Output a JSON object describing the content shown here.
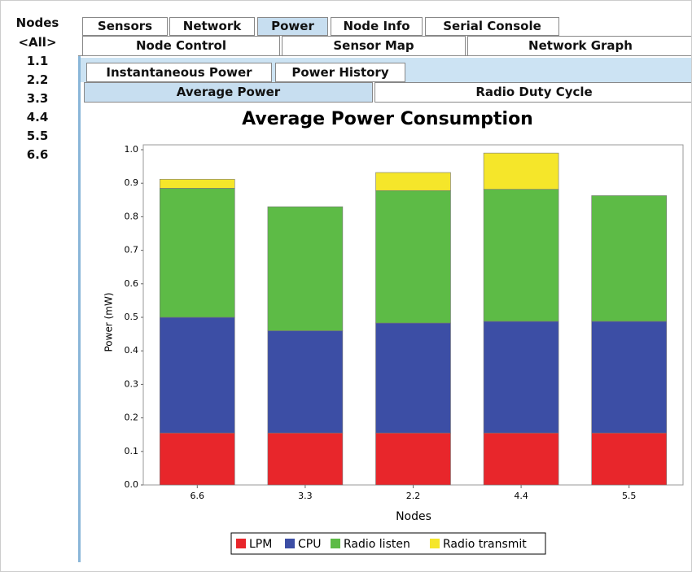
{
  "nodes_panel": {
    "title": "Nodes",
    "items": [
      "<All>",
      "1.1",
      "2.2",
      "3.3",
      "4.4",
      "5.5",
      "6.6"
    ]
  },
  "tabs": {
    "row_1": [
      "Sensors",
      "Network",
      "Power",
      "Node Info",
      "Serial Console"
    ],
    "row_2": [
      "Node Control",
      "Sensor Map",
      "Network Graph"
    ]
  },
  "sub_tabs": {
    "row_1": [
      "Instantaneous Power",
      "Power History"
    ],
    "row_2": [
      "Average Power",
      "Radio Duty Cycle"
    ]
  },
  "chart_data": {
    "type": "stacked_bar",
    "title": "Average Power Consumption",
    "x_label": "Nodes",
    "y_label": "Power (mW)",
    "categories": [
      "6.6",
      "3.3",
      "2.2",
      "4.4",
      "5.5"
    ],
    "series": [
      {
        "name": "LPM",
        "color": "#e8262b",
        "values": [
          0.155,
          0.155,
          0.155,
          0.155,
          0.155
        ]
      },
      {
        "name": "CPU",
        "color": "#3c4ea5",
        "values": [
          0.345,
          0.305,
          0.328,
          0.333,
          0.333
        ]
      },
      {
        "name": "Radio listen",
        "color": "#5dbb46",
        "values": [
          0.385,
          0.37,
          0.395,
          0.394,
          0.375
        ]
      },
      {
        "name": "Radio transmit",
        "color": "#f5e62a",
        "values": [
          0.027,
          0,
          0.054,
          0.108,
          0
        ]
      }
    ],
    "ylim": [
      0,
      1
    ],
    "yticks": [
      {
        "value": 0,
        "label": "0.0"
      },
      0.1,
      0.2,
      0.3,
      0.4,
      0.5,
      0.6,
      0.7,
      0.8,
      0.9,
      {
        "value": 1,
        "label": "1.0"
      }
    ],
    "grid": false,
    "legend": "bottom"
  }
}
